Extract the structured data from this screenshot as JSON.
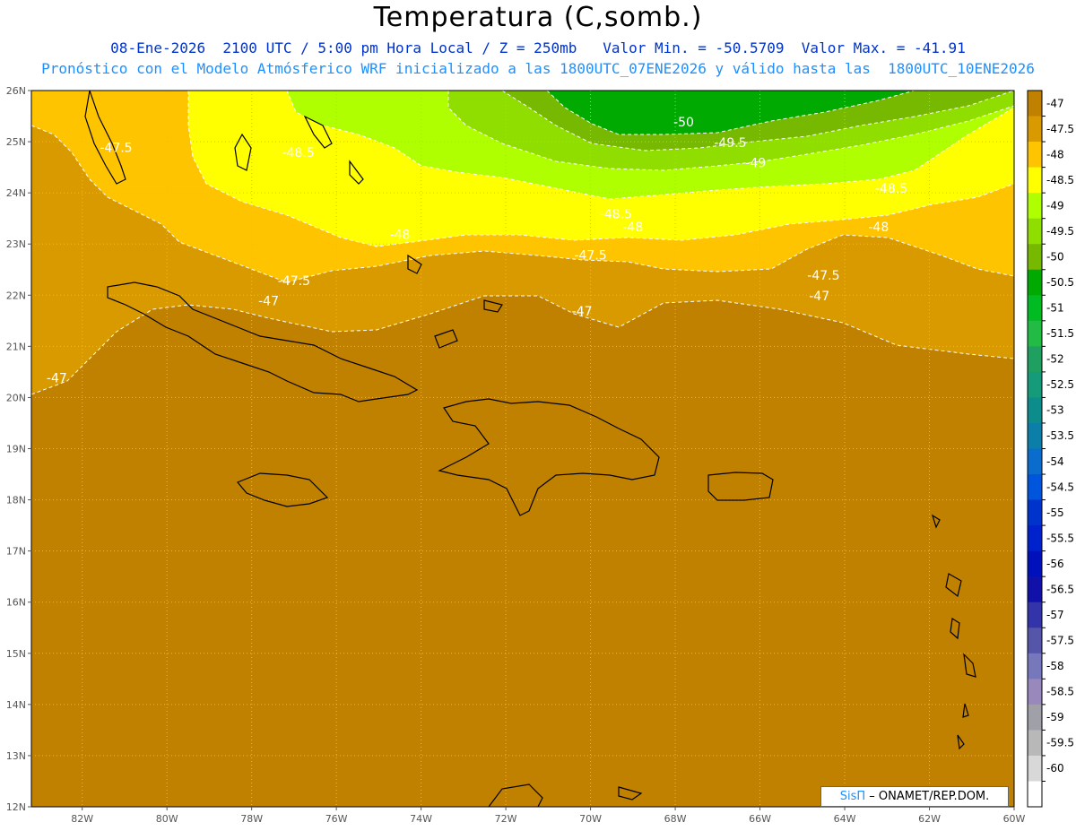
{
  "header": {
    "title": "Temperatura (C,somb.)",
    "line1": "08-Ene-2026  2100 UTC / 5:00 pm Hora Local / Z = 250mb   Valor Min. = -50.5709  Valor Max. = -41.91",
    "line2": "Pronóstico con el Modelo Atmósferico WRF inicializado a las 1800UTC_07ENE2026 y válido hasta las  1800UTC_10ENE2026"
  },
  "map": {
    "lon_range": [
      -83.2,
      -60
    ],
    "lat_range": [
      12,
      26
    ],
    "lon_ticks": [
      "82W",
      "80W",
      "78W",
      "76W",
      "74W",
      "72W",
      "70W",
      "68W",
      "66W",
      "64W",
      "62W",
      "60W"
    ],
    "lat_ticks": [
      "12N",
      "13N",
      "14N",
      "15N",
      "16N",
      "17N",
      "18N",
      "19N",
      "20N",
      "21N",
      "22N",
      "23N",
      "24N",
      "25N",
      "26N"
    ],
    "contour_labels": [
      {
        "text": "-47.5",
        "lon": -81.2,
        "lat": 24.8
      },
      {
        "text": "-48.5",
        "lon": -76.9,
        "lat": 24.7
      },
      {
        "text": "-50",
        "lon": -67.8,
        "lat": 25.3
      },
      {
        "text": "-49.5",
        "lon": -66.7,
        "lat": 24.9
      },
      {
        "text": "-49",
        "lon": -66.1,
        "lat": 24.5
      },
      {
        "text": "-48.5",
        "lon": -62.9,
        "lat": 24.0
      },
      {
        "text": "-48.5",
        "lon": -69.4,
        "lat": 23.5
      },
      {
        "text": "-48",
        "lon": -69.0,
        "lat": 23.25
      },
      {
        "text": "-48",
        "lon": -63.2,
        "lat": 23.25
      },
      {
        "text": "-48",
        "lon": -74.5,
        "lat": 23.1
      },
      {
        "text": "-47.5",
        "lon": -70.0,
        "lat": 22.7
      },
      {
        "text": "-47.5",
        "lon": -77.0,
        "lat": 22.2
      },
      {
        "text": "-47.5",
        "lon": -64.5,
        "lat": 22.3
      },
      {
        "text": "-47",
        "lon": -77.6,
        "lat": 21.8
      },
      {
        "text": "-47",
        "lon": -70.2,
        "lat": 21.6
      },
      {
        "text": "-47",
        "lon": -64.6,
        "lat": 21.9
      },
      {
        "text": "-47",
        "lon": -82.6,
        "lat": 20.3
      }
    ]
  },
  "colorbar": {
    "labels": [
      "-47",
      "-47.5",
      "-48",
      "-48.5",
      "-49",
      "-49.5",
      "-50",
      "-50.5",
      "-51",
      "-51.5",
      "-52",
      "-52.5",
      "-53",
      "-53.5",
      "-54",
      "-54.5",
      "-55",
      "-55.5",
      "-56",
      "-56.5",
      "-57",
      "-57.5",
      "-58",
      "-58.5",
      "-59",
      "-59.5",
      "-60"
    ],
    "colors": [
      "#c08000",
      "#d99a00",
      "#ffc400",
      "#ffff00",
      "#b0ff00",
      "#90dd00",
      "#77b800",
      "#00aa00",
      "#00bb22",
      "#22bb44",
      "#1fa060",
      "#159a7a",
      "#0d8c8c",
      "#0b7fa8",
      "#0a6ccc",
      "#0055dd",
      "#0033cc",
      "#0022cc",
      "#0011bb",
      "#1111aa",
      "#3333aa",
      "#5555aa",
      "#7777bb",
      "#9988bb",
      "#a0a0a8",
      "#b8b8b8",
      "#d8d8d8",
      "#ffffff"
    ]
  },
  "credit": {
    "brand": "SisΠ",
    "org": "– ONAMET/REP.DOM."
  }
}
